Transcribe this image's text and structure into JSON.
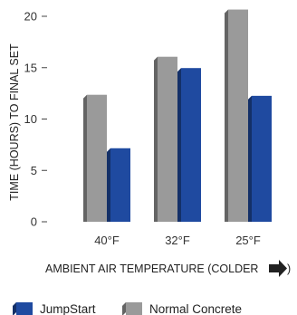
{
  "chart_data": {
    "type": "bar",
    "categories": [
      "40°F",
      "32°F",
      "25°F"
    ],
    "series": [
      {
        "name": "Normal Concrete",
        "values": [
          12,
          15.7,
          20.3
        ],
        "color": "#9a9a9a"
      },
      {
        "name": "JumpStart",
        "values": [
          6.8,
          14.6,
          11.9
        ],
        "color": "#1f4aa0"
      }
    ],
    "ylim": [
      0,
      20
    ],
    "yticks": [
      0,
      5,
      10,
      15,
      20
    ],
    "ylabel": "TIME (HOURS) TO FINAL SET",
    "xlabel": "AMBIENT AIR TEMPERATURE (COLDER",
    "xlabel_icon": "right-arrow-icon",
    "legend": {
      "position": "bottom",
      "order": [
        "JumpStart",
        "Normal Concrete"
      ]
    },
    "grid": false,
    "style": "3d-bars"
  }
}
